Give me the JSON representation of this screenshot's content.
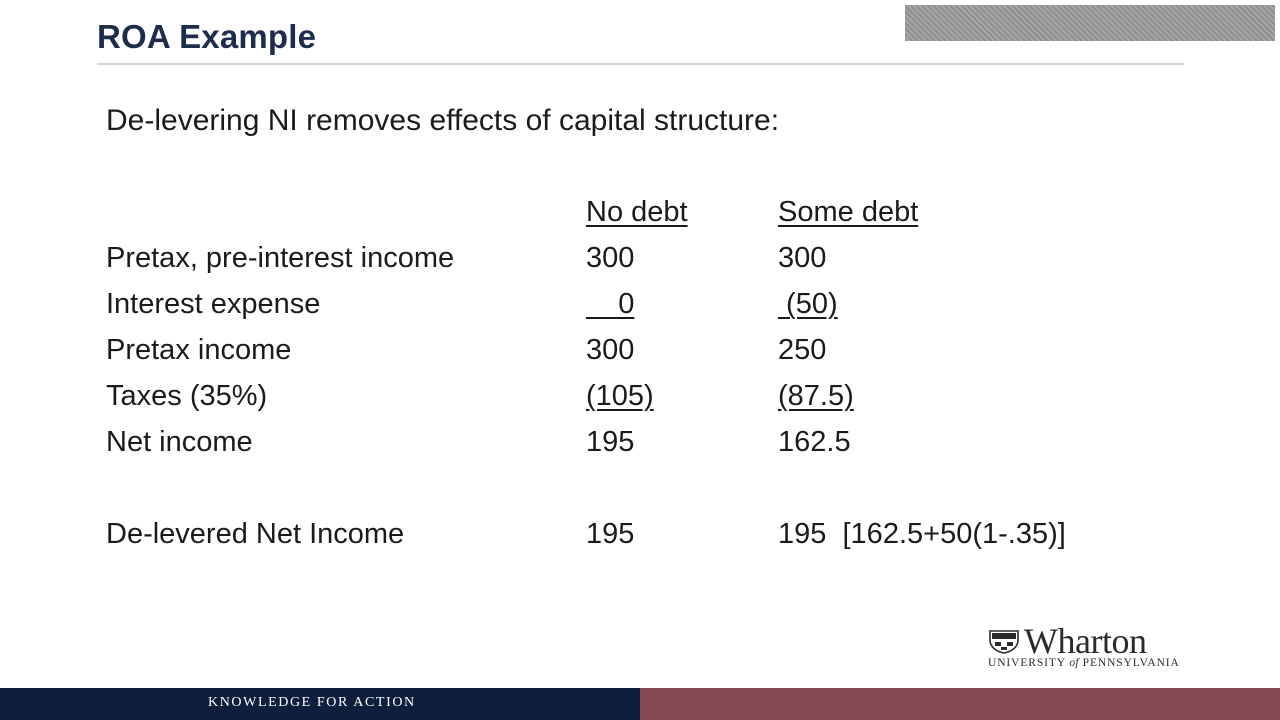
{
  "slide": {
    "title": "ROA Example",
    "intro": "De-levering NI removes effects of capital structure:"
  },
  "table": {
    "col_headers": [
      "No debt",
      "Some debt"
    ],
    "rows": [
      {
        "label": "Pretax, pre-interest income",
        "no_debt": "300",
        "some_debt": "300"
      },
      {
        "label": "Interest expense",
        "no_debt": "    0",
        "some_debt": " (50)"
      },
      {
        "label": "Pretax income",
        "no_debt": "300",
        "some_debt": "250"
      },
      {
        "label": "Taxes (35%)",
        "no_debt": "(105)",
        "some_debt": "(87.5)"
      },
      {
        "label": "Net income",
        "no_debt": "195",
        "some_debt": "162.5"
      }
    ],
    "delevered": {
      "label": "De-levered Net Income",
      "no_debt": "195",
      "some_debt": "195  [162.5+50(1-.35)]"
    }
  },
  "logo": {
    "wordmark": "Wharton",
    "sub_prefix": "UNIVERSITY ",
    "sub_of": "of",
    "sub_suffix": " PENNSYLVANIA"
  },
  "footer": {
    "tagline": "KNOWLEDGE FOR ACTION",
    "left_color": "#0d1f3d",
    "right_color": "#864a55"
  }
}
